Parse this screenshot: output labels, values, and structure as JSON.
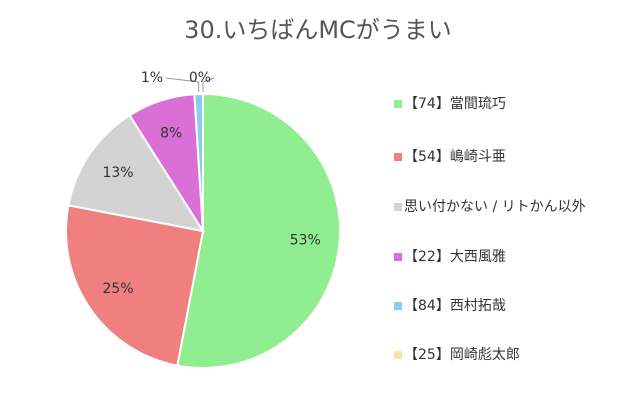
{
  "chart_data": {
    "type": "pie",
    "title": "30.いちばんMCがうまい",
    "categories": [
      "【74】當間琉巧",
      "【54】嶋崎斗亜",
      "思い付かない / リトかん以外",
      "【22】大西風雅",
      "【84】西村拓哉",
      "【25】岡崎彪太郎"
    ],
    "values": [
      53,
      25,
      13,
      8,
      1,
      0
    ],
    "value_labels": [
      "53%",
      "25%",
      "13%",
      "8%",
      "1%",
      "0%"
    ],
    "colors": [
      "#90ee90",
      "#f08080",
      "#d3d3d3",
      "#da70d6",
      "#87ceeb",
      "#eee8aa"
    ]
  }
}
